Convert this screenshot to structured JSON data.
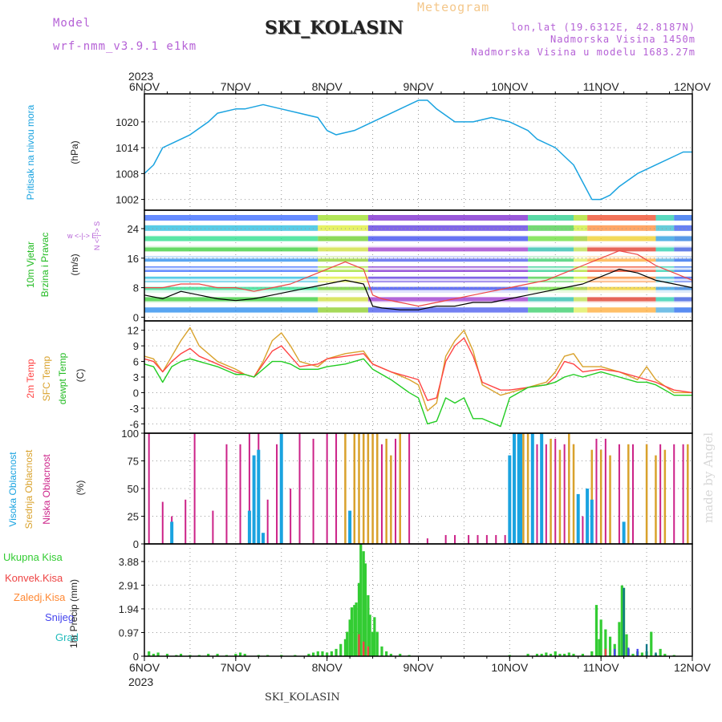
{
  "header": {
    "model_label": "Model",
    "model_name": "wrf-nmm_v3.9.1  e1km",
    "title": "SKI_KOLASIN",
    "meteogram": "Meteogram",
    "lonlat": "lon,lat (19.6312E, 42.8187N)",
    "elevation": "Nadmorska Visina 1450m",
    "model_elevation": "Nadmorska Visina u modelu 1683.27m"
  },
  "time_axis": {
    "year": "2023",
    "ticks": [
      "6NOV",
      "7NOV",
      "8NOV",
      "9NOV",
      "10NOV",
      "11NOV",
      "12NOV"
    ]
  },
  "footer": {
    "station": "SKI_KOLASIN",
    "signature": "made by Angel"
  },
  "colors": {
    "pressure": "#1aa3e0",
    "temp2m": "#ff4444",
    "sfc": "#d9a22c",
    "dewpt": "#22cc22",
    "high_cloud": "#1aa3e0",
    "mid_cloud": "#d9a22c",
    "low_cloud": "#cc2288",
    "total_precip": "#33cc33",
    "conv_precip": "#ee4444",
    "frozen_precip": "#ff8833",
    "snow": "#4444ee",
    "graupel": "#22bbbb"
  },
  "chart_data": [
    {
      "id": "pressure",
      "type": "line",
      "ylabel": "Pritisak na nivou mora",
      "unit": "(hPa)",
      "yticks": [
        1002,
        1008,
        1014,
        1020
      ],
      "ylim": [
        999.5,
        1026.5
      ],
      "x": [
        6,
        6.1,
        6.2,
        6.3,
        6.5,
        6.7,
        6.8,
        7,
        7.1,
        7.3,
        7.5,
        7.7,
        7.9,
        8,
        8.1,
        8.3,
        8.5,
        8.7,
        8.9,
        9,
        9.1,
        9.2,
        9.4,
        9.6,
        9.8,
        10,
        10.2,
        10.3,
        10.5,
        10.7,
        10.8,
        10.9,
        11,
        11.1,
        11.2,
        11.4,
        11.6,
        11.8,
        11.9,
        12
      ],
      "series": [
        {
          "values": [
            1008,
            1010,
            1014,
            1015,
            1017,
            1020,
            1022,
            1023,
            1023,
            1024,
            1023,
            1022,
            1021,
            1018,
            1017,
            1018,
            1020,
            1022,
            1024,
            1025,
            1025,
            1023,
            1020,
            1020,
            1021,
            1020,
            1018,
            1016,
            1014,
            1010,
            1006,
            1002,
            1002,
            1003,
            1005,
            1008,
            1010,
            1012,
            1013,
            1013
          ]
        }
      ]
    },
    {
      "id": "wind",
      "type": "line",
      "ylabel": "10m Vjetar",
      "ylabel2": "Brzina i Pravac",
      "unit": "(m/s)",
      "direction_legend": "w <-|-> E",
      "direction_legend_v": "N <-|-> S",
      "yticks": [
        0,
        8,
        16,
        24
      ],
      "ylim": [
        -1,
        29
      ],
      "x": [
        6,
        6.2,
        6.4,
        6.6,
        6.8,
        7,
        7.2,
        7.4,
        7.6,
        7.8,
        8,
        8.2,
        8.4,
        8.5,
        8.6,
        8.8,
        9,
        9.2,
        9.4,
        9.6,
        9.8,
        10,
        10.2,
        10.4,
        10.6,
        10.8,
        11,
        11.2,
        11.4,
        11.6,
        11.8,
        12
      ],
      "series": [
        {
          "name": "speed",
          "values": [
            6,
            5,
            7,
            6,
            5,
            4.5,
            5,
            6,
            7,
            8,
            9,
            10,
            9,
            3,
            2.5,
            2,
            2,
            3,
            3,
            4,
            4,
            5,
            6,
            7,
            8,
            9,
            11,
            13,
            12,
            10,
            9,
            8
          ]
        },
        {
          "name": "gust",
          "values": [
            8,
            8,
            9,
            9,
            8,
            8,
            7,
            8,
            9,
            11,
            13,
            15,
            13,
            6,
            5,
            4,
            3,
            4,
            5,
            6,
            7,
            8,
            9,
            10,
            12,
            14,
            16,
            18,
            17,
            14,
            12,
            10
          ]
        }
      ]
    },
    {
      "id": "temperature",
      "type": "line",
      "ylabel": "2m Temp",
      "ylabel2": "SFC Temp",
      "ylabel3": "dewpt Temp",
      "unit": "(C)",
      "yticks": [
        -6,
        -3,
        0,
        3,
        6,
        9,
        12
      ],
      "ylim": [
        -7.8,
        13.8
      ],
      "x": [
        6,
        6.1,
        6.2,
        6.3,
        6.4,
        6.5,
        6.6,
        6.8,
        7,
        7.1,
        7.2,
        7.3,
        7.4,
        7.5,
        7.6,
        7.7,
        7.9,
        8,
        8.2,
        8.4,
        8.5,
        8.7,
        8.9,
        9,
        9.1,
        9.2,
        9.3,
        9.4,
        9.5,
        9.6,
        9.7,
        9.9,
        10,
        10.2,
        10.4,
        10.5,
        10.6,
        10.7,
        10.8,
        11,
        11.2,
        11.4,
        11.5,
        11.6,
        11.8,
        12
      ],
      "series": [
        {
          "name": "2m Temp",
          "values": [
            6.5,
            6,
            4,
            6,
            7.5,
            8.5,
            7,
            5.5,
            4,
            3.5,
            3,
            5.5,
            8,
            9,
            7,
            5,
            5.5,
            6.5,
            7,
            7.5,
            5.5,
            4,
            3,
            2.5,
            -1.5,
            -1,
            6,
            9,
            10.5,
            7,
            2,
            0.5,
            0.5,
            1,
            1.5,
            3,
            6,
            5.5,
            4,
            4.5,
            4,
            3,
            2.5,
            2,
            0.5,
            0
          ]
        },
        {
          "name": "SFC Temp",
          "values": [
            7,
            6.5,
            4,
            7,
            10,
            12.5,
            9,
            6,
            4.5,
            3.5,
            3,
            6,
            10,
            11.5,
            9,
            6,
            5,
            6.5,
            7.5,
            8,
            5.5,
            4,
            2.5,
            1.5,
            -3.5,
            -2,
            7,
            10,
            12,
            8,
            1.5,
            -0.5,
            0,
            1,
            2,
            4,
            7,
            7.5,
            5,
            5,
            4,
            2.5,
            5,
            2.5,
            0,
            0
          ]
        },
        {
          "name": "dewpt Temp",
          "values": [
            5.5,
            5,
            2,
            5,
            6,
            6.5,
            6,
            5,
            3.5,
            3.5,
            3,
            4.5,
            6,
            6,
            5.5,
            4.5,
            4.5,
            5,
            5.5,
            6.5,
            4.5,
            2.5,
            0,
            -1,
            -6,
            -5.5,
            -1,
            -2,
            -1,
            -5,
            -5,
            -6.5,
            -1,
            1,
            1.5,
            2,
            3,
            3.5,
            3,
            4,
            3,
            2,
            2,
            1.5,
            -0.5,
            -0.5
          ]
        }
      ]
    },
    {
      "id": "clouds",
      "type": "bar",
      "ylabel": "Visoka Oblacnost",
      "ylabel2": "Srednja Oblacnost",
      "ylabel3": "Niska Oblacnost",
      "unit": "(%)",
      "yticks": [
        0,
        25,
        50,
        75,
        100
      ],
      "ylim": [
        0,
        100
      ],
      "series": [
        {
          "name": "low",
          "x": [
            6.05,
            6.2,
            6.3,
            6.45,
            6.55,
            6.75,
            6.9,
            7.05,
            7.15,
            7.25,
            7.35,
            7.45,
            7.6,
            7.7,
            7.85,
            8.0,
            8.1,
            8.2,
            8.3,
            8.4,
            8.45,
            8.5,
            8.55,
            8.6,
            8.75,
            8.9,
            9.1,
            9.3,
            9.4,
            9.55,
            9.65,
            9.75,
            9.85,
            9.95,
            10.05,
            10.15,
            10.3,
            10.4,
            10.5,
            10.6,
            10.7,
            10.8,
            10.95,
            11.05,
            11.2,
            11.35,
            11.5,
            11.65,
            11.8,
            11.9
          ],
          "values": [
            100,
            38,
            25,
            40,
            100,
            30,
            90,
            90,
            100,
            100,
            40,
            90,
            50,
            100,
            95,
            100,
            100,
            100,
            90,
            100,
            100,
            100,
            100,
            90,
            95,
            100,
            5,
            8,
            8,
            8,
            8,
            8,
            8,
            8,
            95,
            95,
            90,
            90,
            95,
            90,
            90,
            25,
            95,
            95,
            90,
            90,
            90,
            90,
            90,
            90
          ]
        },
        {
          "name": "mid",
          "x": [
            7.5,
            8.2,
            8.3,
            8.35,
            8.4,
            8.45,
            8.5,
            8.55,
            8.65,
            8.7,
            8.8,
            10.15,
            10.2,
            10.25,
            10.35,
            10.45,
            10.55,
            10.65,
            10.7,
            10.9,
            11.0,
            11.1,
            11.3,
            11.5,
            11.6,
            11.7,
            11.95
          ],
          "values": [
            100,
            100,
            100,
            100,
            100,
            100,
            100,
            100,
            95,
            80,
            100,
            100,
            100,
            100,
            100,
            95,
            85,
            100,
            90,
            85,
            85,
            80,
            90,
            90,
            80,
            85,
            90
          ]
        },
        {
          "name": "high",
          "x": [
            6.3,
            7.15,
            7.2,
            7.25,
            7.3,
            7.5,
            8.25,
            10.0,
            10.05,
            10.1,
            10.12,
            10.25,
            10.35,
            10.75,
            10.85,
            10.9,
            11.25
          ],
          "values": [
            20,
            30,
            80,
            85,
            10,
            100,
            30,
            80,
            100,
            100,
            100,
            100,
            100,
            45,
            50,
            40,
            20
          ]
        }
      ]
    },
    {
      "id": "precip",
      "type": "bar",
      "ylabel": "1hr Precip",
      "unit": "(mm)",
      "legend": [
        "Ukupna Kisa",
        "Konvek.Kisa",
        "Zaledj.Kisa",
        "Snijeg",
        "Grad"
      ],
      "yticks": [
        0,
        0.97,
        1.94,
        2.91,
        3.88
      ],
      "ylim": [
        0,
        4.6
      ],
      "series": [
        {
          "name": "Ukupna Kisa",
          "x": [
            6.05,
            6.1,
            6.15,
            6.25,
            6.35,
            6.4,
            6.5,
            6.6,
            6.7,
            6.8,
            6.9,
            7.0,
            7.05,
            7.1,
            7.25,
            7.35,
            7.5,
            7.65,
            7.8,
            7.85,
            7.9,
            7.95,
            8.0,
            8.05,
            8.1,
            8.15,
            8.2,
            8.22,
            8.25,
            8.27,
            8.3,
            8.32,
            8.35,
            8.37,
            8.4,
            8.42,
            8.45,
            8.47,
            8.5,
            8.52,
            8.55,
            8.6,
            8.65,
            8.7,
            8.8,
            8.9,
            10.0,
            10.2,
            10.3,
            10.35,
            10.4,
            10.45,
            10.5,
            10.55,
            10.6,
            10.65,
            10.7,
            10.8,
            10.9,
            10.95,
            10.98,
            11.0,
            11.05,
            11.1,
            11.15,
            11.2,
            11.23,
            11.25,
            11.28,
            11.3,
            11.35,
            11.4,
            11.45,
            11.5,
            11.55,
            11.6,
            11.65,
            11.7,
            11.8
          ],
          "values": [
            0.2,
            0.1,
            0.15,
            0.1,
            0.05,
            0.1,
            0.05,
            0.05,
            0.1,
            0.1,
            0.05,
            0.1,
            0.15,
            0.1,
            0.05,
            0.05,
            0.05,
            0.05,
            0.1,
            0.15,
            0.2,
            0.2,
            0.15,
            0.2,
            0.3,
            0.5,
            0.7,
            1.0,
            1.5,
            2.0,
            2.1,
            2.2,
            3.0,
            4.6,
            4.3,
            3.8,
            2.5,
            1.7,
            1.0,
            1.6,
            1.0,
            0.4,
            0.2,
            0.1,
            0.1,
            0.05,
            0.05,
            0.1,
            0.1,
            0.1,
            0.15,
            0.1,
            0.2,
            0.1,
            0.1,
            0.15,
            0.1,
            0.1,
            0.2,
            2.1,
            0.7,
            1.5,
            1.1,
            0.8,
            0.5,
            1.4,
            2.9,
            2.8,
            0.9,
            0.3,
            0.1,
            0.2,
            0.15,
            0.2,
            1.0,
            0.1,
            0.3,
            0.1,
            0.05
          ]
        },
        {
          "name": "Konvek.Kisa",
          "x": [
            8.35,
            8.4,
            8.45,
            11.05,
            11.25
          ],
          "values": [
            0.9,
            0.6,
            0.4,
            0.3,
            0.6
          ]
        },
        {
          "name": "Snijeg",
          "x": [
            11.15,
            11.3,
            11.4
          ],
          "values": [
            0.3,
            0.35,
            0.3
          ]
        },
        {
          "name": "Grad",
          "x": [
            11.25,
            11.5,
            11.6
          ],
          "values": [
            2.8,
            0.5,
            0.15
          ]
        }
      ]
    }
  ]
}
